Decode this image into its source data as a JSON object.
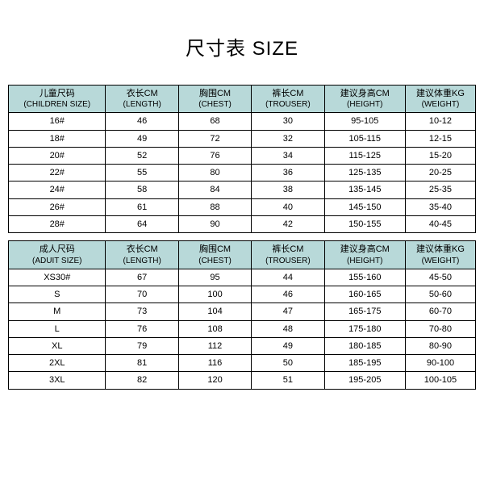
{
  "title": "尺寸表 SIZE",
  "colors": {
    "header_bg": "#b8d9d9",
    "border": "#000000",
    "background": "#ffffff",
    "text": "#000000"
  },
  "column_headers_children": [
    {
      "cn": "儿童尺码",
      "en": "(CHILDREN SIZE)"
    },
    {
      "cn": "衣长CM",
      "en": "(LENGTH)"
    },
    {
      "cn": "胸围CM",
      "en": "(CHEST)"
    },
    {
      "cn": "裤长CM",
      "en": "(TROUSER)"
    },
    {
      "cn": "建议身高CM",
      "en": "(HEIGHT)"
    },
    {
      "cn": "建议体重KG",
      "en": "(WEIGHT)"
    }
  ],
  "children_rows": [
    [
      "16#",
      "46",
      "68",
      "30",
      "95-105",
      "10-12"
    ],
    [
      "18#",
      "49",
      "72",
      "32",
      "105-115",
      "12-15"
    ],
    [
      "20#",
      "52",
      "76",
      "34",
      "115-125",
      "15-20"
    ],
    [
      "22#",
      "55",
      "80",
      "36",
      "125-135",
      "20-25"
    ],
    [
      "24#",
      "58",
      "84",
      "38",
      "135-145",
      "25-35"
    ],
    [
      "26#",
      "61",
      "88",
      "40",
      "145-150",
      "35-40"
    ],
    [
      "28#",
      "64",
      "90",
      "42",
      "150-155",
      "40-45"
    ]
  ],
  "column_headers_adult": [
    {
      "cn": "成人尺码",
      "en": "(ADUIT SIZE)"
    },
    {
      "cn": "衣长CM",
      "en": "(LENGTH)"
    },
    {
      "cn": "胸围CM",
      "en": "(CHEST)"
    },
    {
      "cn": "裤长CM",
      "en": "(TROUSER)"
    },
    {
      "cn": "建议身高CM",
      "en": "(HEIGHT)"
    },
    {
      "cn": "建议体重KG",
      "en": "(WEIGHT)"
    }
  ],
  "adult_rows": [
    [
      "XS30#",
      "67",
      "95",
      "44",
      "155-160",
      "45-50"
    ],
    [
      "S",
      "70",
      "100",
      "46",
      "160-165",
      "50-60"
    ],
    [
      "M",
      "73",
      "104",
      "47",
      "165-175",
      "60-70"
    ],
    [
      "L",
      "76",
      "108",
      "48",
      "175-180",
      "70-80"
    ],
    [
      "XL",
      "79",
      "112",
      "49",
      "180-185",
      "80-90"
    ],
    [
      "2XL",
      "81",
      "116",
      "50",
      "185-195",
      "90-100"
    ],
    [
      "3XL",
      "82",
      "120",
      "51",
      "195-205",
      "100-105"
    ]
  ]
}
